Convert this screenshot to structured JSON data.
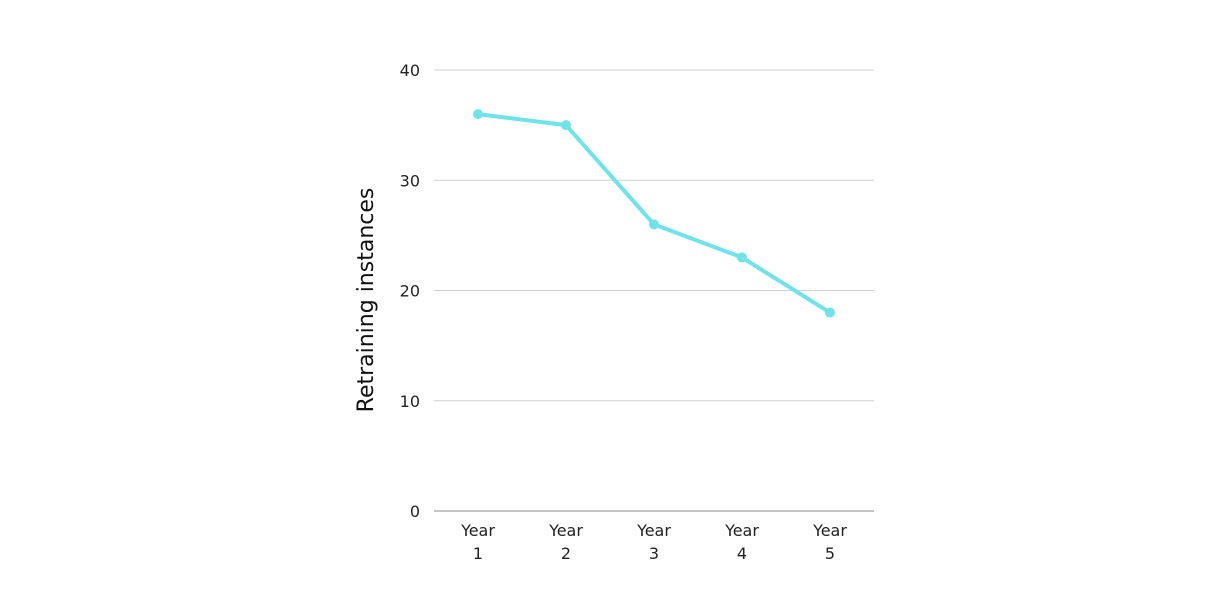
{
  "chart_data": {
    "type": "line",
    "title": "",
    "xlabel": "",
    "ylabel": "Retraining instances",
    "categories": [
      [
        "Year",
        "1"
      ],
      [
        "Year",
        "2"
      ],
      [
        "Year",
        "3"
      ],
      [
        "Year",
        "4"
      ],
      [
        "Year",
        "5"
      ]
    ],
    "series": [
      {
        "values": [
          36,
          35,
          26,
          23,
          18
        ]
      }
    ],
    "ylim": [
      0,
      40
    ],
    "yticks": [
      0,
      10,
      20,
      30,
      40
    ],
    "grid": true,
    "legend": "none",
    "colors": {
      "line": "#6ee3ea",
      "grid": "#d0d0d0",
      "baseline": "#888888"
    }
  }
}
